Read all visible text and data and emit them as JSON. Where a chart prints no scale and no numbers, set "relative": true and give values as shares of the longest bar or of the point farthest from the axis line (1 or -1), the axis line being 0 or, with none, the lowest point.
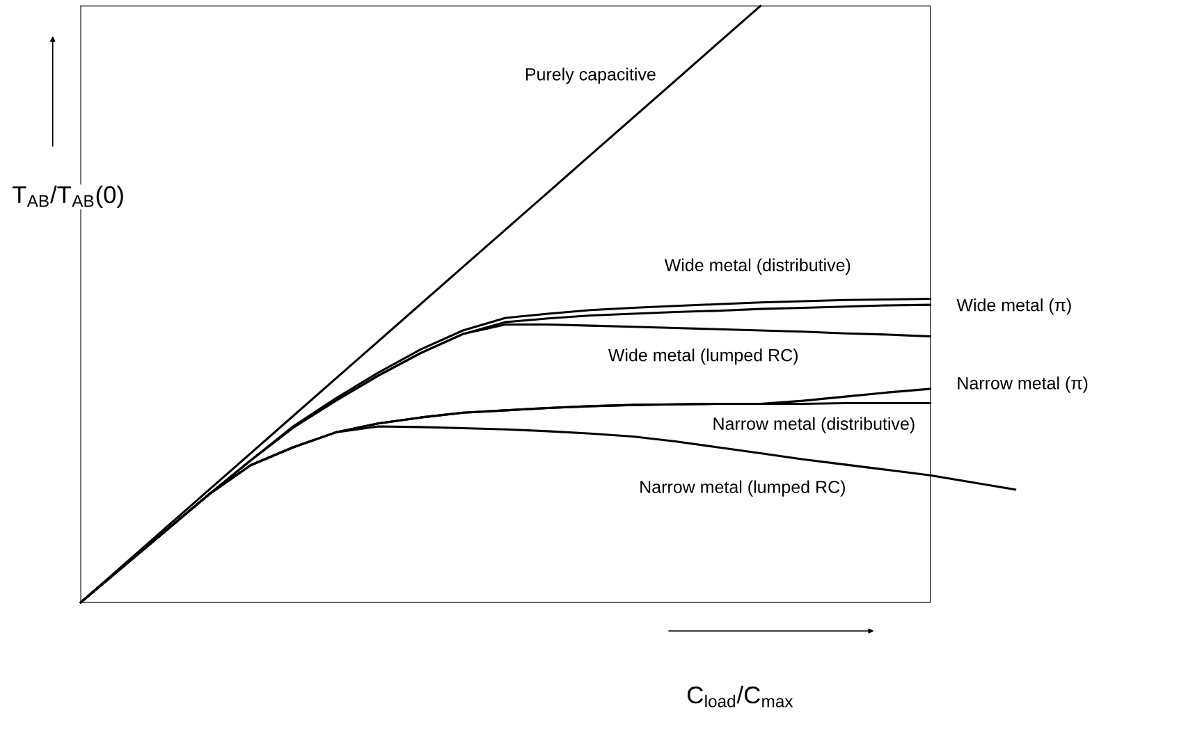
{
  "chart_data": {
    "type": "line",
    "relative": true,
    "xlabel": "C$_{load}$/C$_{max}$",
    "ylabel": "T$_{AB}$/T$_{AB}$(0)",
    "legend": false,
    "tick_labels": false,
    "marker": "none",
    "line_style": "solid",
    "categories": [
      null,
      null,
      null,
      null,
      null,
      null,
      null,
      null,
      null,
      null,
      null,
      null,
      null,
      null,
      null,
      null,
      null,
      null,
      null,
      null,
      null,
      null,
      null
    ],
    "series": [
      {
        "name": "Purely capacitive",
        "color": "#000000",
        "values": [
          0,
          0.0625,
          0.125,
          0.1875,
          0.25,
          0.3125,
          0.375,
          0.4375,
          0.5,
          0.5625,
          0.625,
          0.6875,
          0.75,
          0.8125,
          0.875,
          0.9375,
          1,
          null,
          null,
          null,
          null,
          null,
          null
        ]
      },
      {
        "name": "Wide metal (distributive)",
        "color": "#000000",
        "values": [
          0,
          0.06,
          0.12,
          0.18,
          0.238,
          0.295,
          0.342,
          0.385,
          0.424,
          0.456,
          0.477,
          0.484,
          0.49,
          0.494,
          0.497,
          0.5,
          0.503,
          0.505,
          0.507,
          0.508,
          0.509,
          null,
          null
        ]
      },
      {
        "name": "Wide metal (π)",
        "color": "#000000",
        "values": [
          0,
          0.06,
          0.12,
          0.18,
          0.238,
          0.293,
          0.338,
          0.38,
          0.418,
          0.45,
          0.47,
          0.476,
          0.481,
          0.484,
          0.487,
          0.489,
          0.492,
          0.494,
          0.496,
          0.498,
          0.499,
          null,
          null
        ]
      },
      {
        "name": "Wide metal (lumped RC)",
        "color": "#000000",
        "values": [
          0,
          0.06,
          0.12,
          0.18,
          0.238,
          0.293,
          0.338,
          0.38,
          0.418,
          0.45,
          0.466,
          0.466,
          0.464,
          0.462,
          0.46,
          0.458,
          0.456,
          0.454,
          0.451,
          0.449,
          0.446,
          null,
          null
        ]
      },
      {
        "name": "Narrow metal (π)",
        "color": "#000000",
        "values": [
          0,
          0.06,
          0.12,
          0.18,
          0.23,
          0.26,
          0.285,
          0.3,
          0.31,
          0.318,
          0.322,
          0.326,
          0.329,
          0.331,
          0.332,
          0.333,
          0.333,
          0.338,
          0.345,
          0.352,
          0.358,
          null,
          null
        ]
      },
      {
        "name": "Narrow metal (distributive)",
        "color": "#000000",
        "values": [
          0,
          0.06,
          0.12,
          0.18,
          0.23,
          0.26,
          0.285,
          0.3,
          0.31,
          0.318,
          0.322,
          0.326,
          0.329,
          0.331,
          0.332,
          0.333,
          0.333,
          0.333,
          0.334,
          0.334,
          0.334,
          null,
          null
        ]
      },
      {
        "name": "Narrow metal (lumped RC)",
        "color": "#000000",
        "values": [
          0,
          0.06,
          0.12,
          0.18,
          0.23,
          0.26,
          0.285,
          0.295,
          0.294,
          0.292,
          0.29,
          0.287,
          0.283,
          0.278,
          0.27,
          0.26,
          0.25,
          0.24,
          0.231,
          0.222,
          0.213,
          0.201,
          0.189
        ]
      }
    ]
  }
}
